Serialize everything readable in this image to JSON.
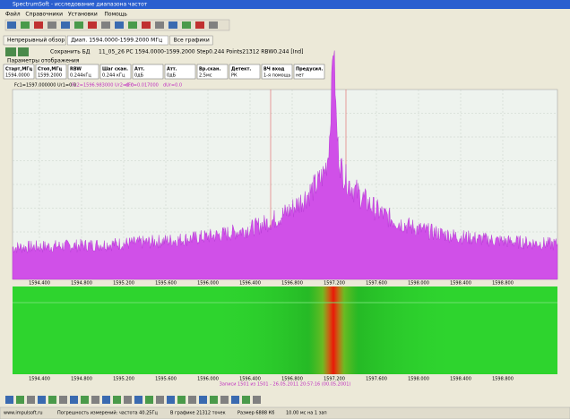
{
  "window_title": "SpectrumSoft - исследование диапазона частот",
  "menu": [
    "Файл",
    "Справочники",
    "Установки",
    "Помощь"
  ],
  "tabs": [
    "Непрерывный обзор",
    "Диап. 1594.0000-1599.2000 МГц",
    "Все графики"
  ],
  "toolbar": {
    "save": "Сохранить БД",
    "file": "11_05_26 PC 1594.0000-1599.2000 Step0.244 Points21312 RBW0.244 [Ind]"
  },
  "section": "Параметры отображения",
  "params": [
    {
      "label": "Старт,МГц",
      "value": "1594.0000"
    },
    {
      "label": "Стоп,МГц",
      "value": "1599.2000"
    },
    {
      "label": "RBW",
      "value": "0.244кГц"
    },
    {
      "label": "Шаг скан.",
      "value": "0.244 кГц"
    },
    {
      "label": "Атт.",
      "value": "0дБ"
    },
    {
      "label": "Атт.",
      "value": "0дБ"
    },
    {
      "label": "Вр.скан.",
      "value": "2.5мс"
    },
    {
      "label": "Детект.",
      "value": "РК"
    },
    {
      "label": "ВЧ вход",
      "value": "1-я помощь"
    },
    {
      "label": "Предусил.",
      "value": "нет"
    }
  ],
  "info": [
    "Fc1=1597.000000 Ur1=0.0",
    "Fc2=1596.983000 Ur2=0.0",
    "dFc=0.017000",
    "dUr=0.0"
  ],
  "freq_axis": [
    "1594.400",
    "1594.800",
    "1595.200",
    "1595.600",
    "1596.000",
    "1596.400",
    "1596.800",
    "1597.200",
    "1597.600",
    "1598.000",
    "1598.400",
    "1598.800"
  ],
  "waterfall_caption": "Записи 1501 из 1501 - 26.05.2011 20:57:16 (00.05.2001)",
  "status": [
    "www.impulsoft.ru",
    "Погрешность измерений: частота 40.25Гц",
    "В графике 21312 точек",
    "Размер 6888 Кб",
    "10.00 мс на 1 зап"
  ]
}
